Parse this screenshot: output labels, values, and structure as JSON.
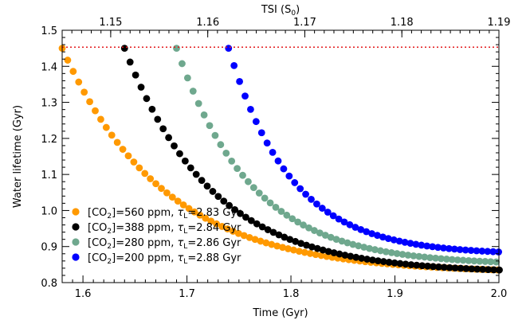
{
  "chart_data": {
    "type": "scatter",
    "xlabel": "Time (Gyr)",
    "ylabel": "Water lifetime (Gyr)",
    "x2label_main": "TSI (S",
    "x2label_sub": "0",
    "x2label_end": ")",
    "xlim": [
      1.58,
      2.0
    ],
    "ylim": [
      0.8,
      1.5
    ],
    "x2lim": [
      1.145,
      1.19
    ],
    "xticks": [
      "1.6",
      "1.7",
      "1.8",
      "1.9",
      "2.0"
    ],
    "yticks": [
      "0.8",
      "0.9",
      "1.0",
      "1.1",
      "1.2",
      "1.3",
      "1.4",
      "1.5"
    ],
    "x2ticks": [
      "1.15",
      "1.16",
      "1.17",
      "1.18",
      "1.19"
    ],
    "reference_line": {
      "y": 1.453,
      "color": "#e31a1c",
      "style": "dotted"
    },
    "legend_position": "bottom-left",
    "series": [
      {
        "name_pre": "[CO",
        "name_sub": "2",
        "name_mid": "]=560 ppm, ",
        "name_tau": "τ",
        "name_tau_sub": "L",
        "name_post": "=2.83 Gyr",
        "color": "#ff9900",
        "x_start": 1.58,
        "y_start": 1.45,
        "y_end": 0.835
      },
      {
        "name_pre": "[CO",
        "name_sub": "2",
        "name_mid": "]=388 ppm, ",
        "name_tau": "τ",
        "name_tau_sub": "L",
        "name_post": "=2.84 Gyr",
        "color": "#000000",
        "x_start": 1.64,
        "y_start": 1.45,
        "y_end": 0.835
      },
      {
        "name_pre": "[CO",
        "name_sub": "2",
        "name_mid": "]=280 ppm, ",
        "name_tau": "τ",
        "name_tau_sub": "L",
        "name_post": "=2.86 Gyr",
        "color": "#6fa88e",
        "x_start": 1.69,
        "y_start": 1.45,
        "y_end": 0.857
      },
      {
        "name_pre": "[CO",
        "name_sub": "2",
        "name_mid": "]=200 ppm, ",
        "name_tau": "τ",
        "name_tau_sub": "L",
        "name_post": "=2.88 Gyr",
        "color": "#0000ff",
        "x_start": 1.74,
        "y_start": 1.45,
        "y_end": 0.885
      }
    ]
  }
}
